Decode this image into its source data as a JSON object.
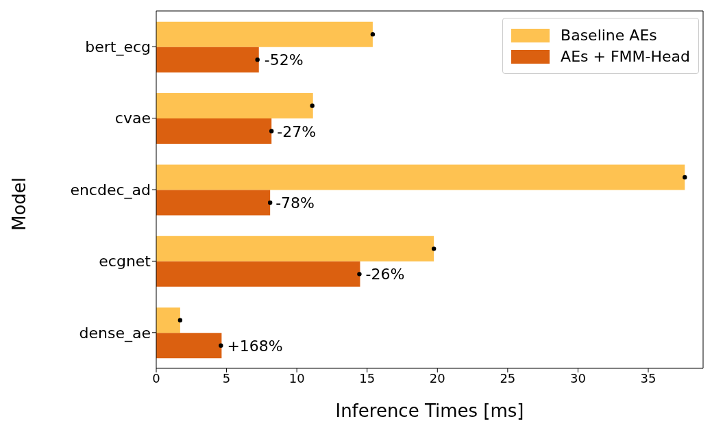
{
  "chart_data": {
    "type": "bar",
    "orientation": "horizontal",
    "xlabel": "Inference Times [ms]",
    "ylabel": "Model",
    "categories": [
      "bert_ecg",
      "cvae",
      "encdec_ad",
      "ecgnet",
      "dense_ae"
    ],
    "series": [
      {
        "name": "Baseline AEs",
        "color": "#fec251",
        "values": [
          15.4,
          11.15,
          37.6,
          19.75,
          1.7
        ]
      },
      {
        "name": "AEs + FMM-Head",
        "color": "#db6010",
        "values": [
          7.3,
          8.2,
          8.1,
          14.5,
          4.65
        ]
      },
      {
        "type": "scatter",
        "color": "#000000",
        "marker": "circle",
        "x": [
          "bert_ecg",
          "cvae",
          "encdec_ad",
          "ecgnet",
          "dense_ae"
        ],
        "values": [
          15.4,
          11.1,
          37.6,
          19.75,
          1.7
        ]
      },
      {
        "type": "scatter",
        "color": "#000000",
        "marker": "circle",
        "x": [
          "bert_ecg",
          "cvae",
          "encdec_ad",
          "ecgnet",
          "dense_ae"
        ],
        "values": [
          7.2,
          8.2,
          8.1,
          14.45,
          4.6
        ]
      }
    ],
    "annotations": [
      {
        "text": "-52%",
        "x": 7.3,
        "y": "bert_ecg"
      },
      {
        "text": "-27%",
        "x": 8.2,
        "y": "cvae"
      },
      {
        "text": "-78%",
        "x": 8.1,
        "y": "encdec_ad"
      },
      {
        "text": "-26%",
        "x": 14.5,
        "y": "ecgnet"
      },
      {
        "text": "+168%",
        "x": 4.65,
        "y": "dense_ae"
      }
    ],
    "xlim": [
      0,
      38.9
    ],
    "xticks": [
      0,
      5,
      10,
      15,
      20,
      25,
      30,
      35
    ],
    "legend": "top right",
    "grid": false
  }
}
